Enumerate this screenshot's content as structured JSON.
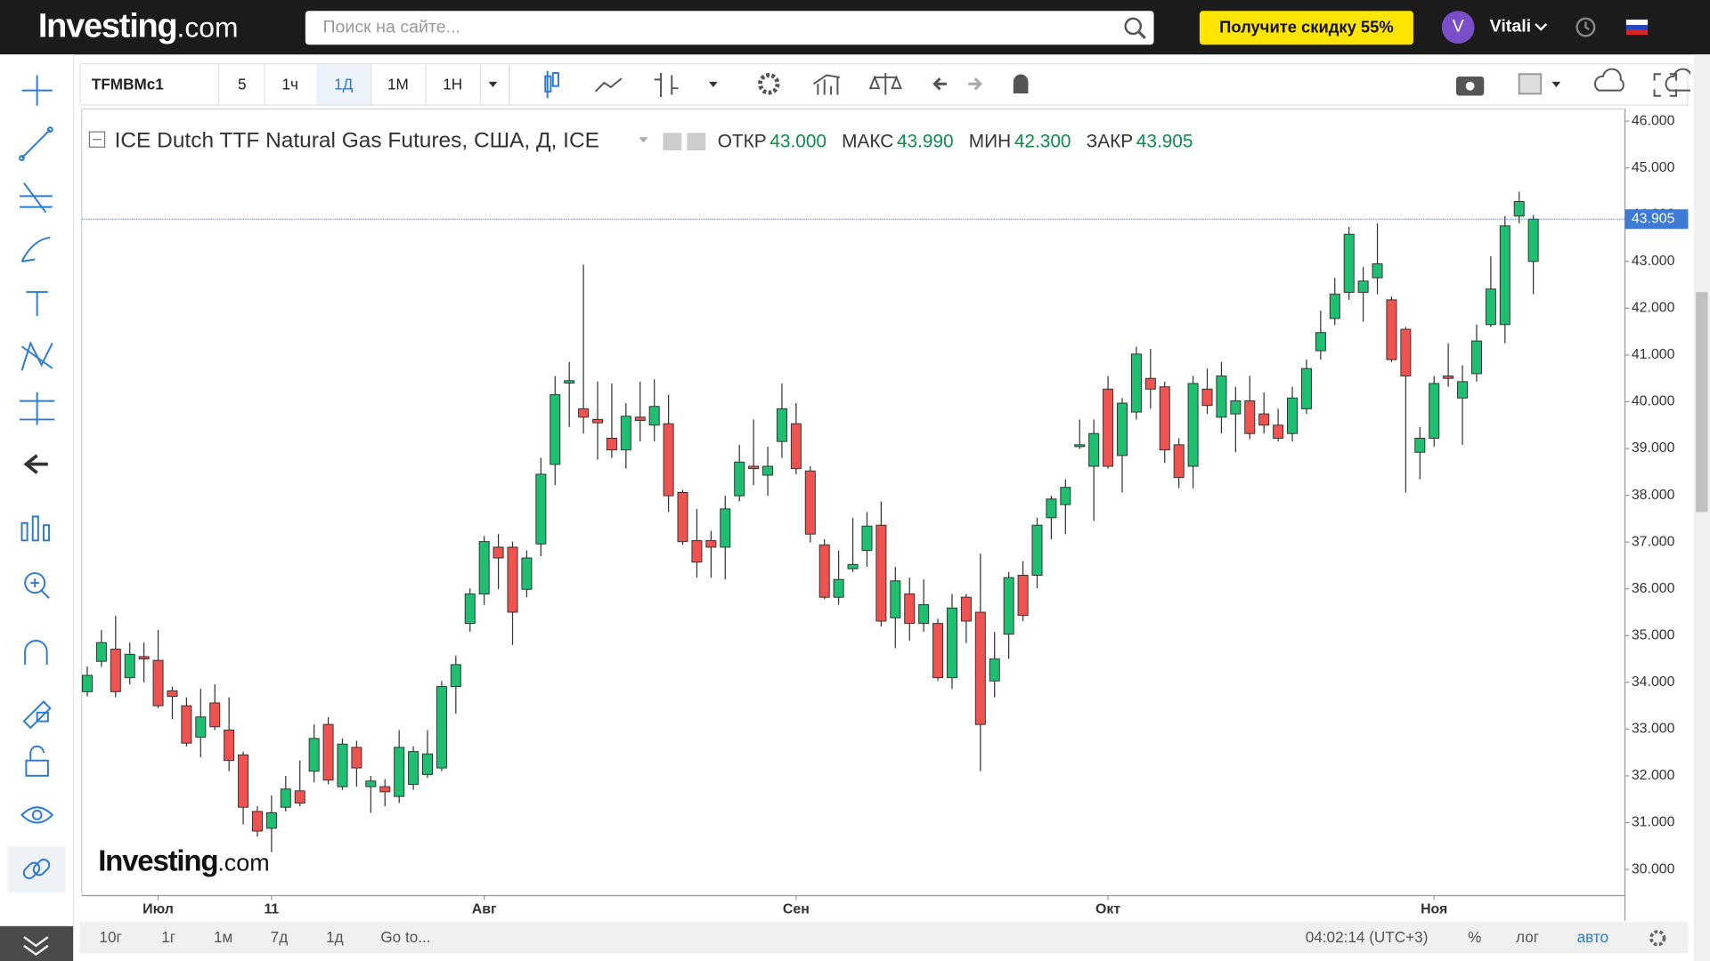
{
  "header": {
    "logo": "Investing",
    "logo_suffix": ".com",
    "search_placeholder": "Поиск на сайте...",
    "promo": "Получите скидку 55%",
    "avatar": "V",
    "user": "Vitali"
  },
  "toolbar": {
    "symbol": "TFMBMc1",
    "intervals": [
      "5",
      "1ч",
      "1Д",
      "1М",
      "1Н"
    ]
  },
  "bottom_bar": {
    "ranges": [
      "10г",
      "1г",
      "1м",
      "7д",
      "1д"
    ],
    "goto": "Go to...",
    "time": "04:02:14 (UTC+3)",
    "options": [
      "%",
      "лог",
      "авто"
    ]
  },
  "chart_data": {
    "type": "candlestick",
    "title": "ICE Dutch TTF Natural Gas Futures, США, Д, ICE",
    "ohlc_legend": [
      {
        "label": "ОТКР",
        "value": "43.000"
      },
      {
        "label": "МАКС",
        "value": "43.990"
      },
      {
        "label": "МИН",
        "value": "42.300"
      },
      {
        "label": "ЗАКР",
        "value": "43.905"
      }
    ],
    "categories": [
      null,
      null,
      null,
      null,
      null,
      "Июл",
      null,
      null,
      null,
      null,
      null,
      null,
      null,
      "11",
      null,
      null,
      null,
      null,
      null,
      null,
      null,
      null,
      null,
      null,
      null,
      null,
      null,
      null,
      "Авг",
      null,
      null,
      null,
      null,
      null,
      null,
      null,
      null,
      null,
      null,
      null,
      null,
      null,
      null,
      null,
      null,
      null,
      null,
      null,
      null,
      null,
      "Сен",
      null,
      null,
      null,
      null,
      null,
      null,
      null,
      null,
      null,
      null,
      null,
      null,
      null,
      null,
      null,
      null,
      null,
      null,
      null,
      null,
      null,
      "Окт",
      null,
      null,
      null,
      null,
      null,
      null,
      null,
      null,
      null,
      null,
      null,
      null,
      null,
      null,
      null,
      null,
      null,
      null,
      null,
      null,
      null,
      null,
      "Ноя",
      null,
      null,
      null,
      null,
      null,
      null,
      null
    ],
    "open": [
      33.8,
      34.45,
      34.71,
      34.1,
      34.55,
      34.47,
      33.82,
      33.5,
      32.83,
      33.56,
      32.98,
      32.45,
      31.24,
      30.88,
      31.33,
      31.68,
      32.1,
      33.1,
      31.77,
      32.61,
      31.77,
      31.77,
      31.56,
      31.82,
      32.03,
      32.17,
      33.91,
      35.26,
      35.89,
      36.89,
      36.89,
      35.99,
      36.96,
      38.66,
      40.4,
      39.85,
      39.62,
      39.22,
      38.97,
      39.67,
      39.5,
      39.53,
      38.06,
      37.03,
      37.03,
      36.89,
      37.99,
      38.62,
      38.43,
      39.15,
      39.53,
      38.52,
      36.94,
      35.82,
      36.43,
      36.82,
      37.36,
      35.38,
      35.89,
      35.26,
      35.26,
      34.1,
      35.82,
      35.5,
      34.03,
      35.03,
      36.29,
      36.29,
      37.52,
      37.8,
      39.04,
      38.62,
      40.27,
      38.85,
      39.78,
      40.5,
      40.32,
      39.08,
      38.62,
      40.27,
      39.67,
      39.74,
      40.02,
      39.74,
      39.5,
      39.32,
      39.85,
      41.09,
      41.78,
      42.34,
      42.34,
      42.65,
      42.18,
      41.55,
      38.92,
      39.22,
      40.55,
      40.08,
      40.6,
      41.65,
      41.65,
      43.97,
      43.0
    ],
    "high": [
      34.34,
      35.12,
      35.42,
      34.85,
      34.85,
      35.12,
      33.91,
      33.68,
      33.86,
      33.96,
      33.68,
      32.52,
      31.35,
      31.58,
      32.0,
      32.33,
      33.1,
      33.26,
      32.8,
      32.75,
      32.0,
      31.93,
      32.98,
      32.63,
      32.98,
      34.03,
      34.57,
      36.01,
      37.13,
      37.17,
      37.01,
      36.82,
      38.8,
      40.55,
      40.85,
      42.93,
      40.43,
      40.39,
      39.97,
      40.43,
      40.48,
      40.15,
      38.11,
      37.71,
      37.24,
      37.99,
      39.08,
      39.62,
      39.04,
      40.39,
      39.97,
      38.62,
      37.06,
      36.82,
      37.52,
      37.64,
      37.87,
      36.47,
      36.24,
      36.2,
      35.36,
      35.89,
      35.89,
      36.75,
      35.08,
      36.36,
      36.59,
      37.52,
      37.99,
      38.34,
      39.62,
      39.62,
      40.55,
      40.08,
      41.18,
      41.13,
      40.43,
      39.22,
      40.55,
      40.71,
      40.85,
      40.32,
      40.55,
      40.2,
      39.85,
      40.32,
      40.9,
      41.95,
      42.65,
      43.74,
      42.88,
      43.81,
      42.25,
      41.6,
      39.46,
      40.55,
      41.25,
      40.78,
      41.65,
      43.11,
      43.97,
      44.49,
      43.99
    ],
    "low": [
      33.7,
      34.33,
      33.68,
      33.96,
      34.0,
      33.45,
      33.21,
      32.63,
      32.4,
      32.98,
      32.1,
      30.96,
      30.7,
      30.37,
      31.24,
      31.35,
      31.86,
      31.82,
      31.7,
      31.77,
      31.21,
      31.35,
      31.42,
      31.7,
      31.96,
      32.1,
      33.33,
      35.08,
      35.66,
      35.99,
      34.8,
      35.82,
      36.7,
      38.22,
      39.46,
      39.32,
      38.76,
      38.8,
      38.57,
      39.15,
      39.15,
      37.64,
      36.94,
      36.24,
      36.24,
      36.2,
      37.87,
      38.22,
      37.99,
      38.8,
      38.45,
      36.99,
      35.78,
      35.66,
      36.36,
      36.47,
      35.19,
      34.73,
      34.89,
      35.08,
      34.03,
      33.86,
      34.84,
      32.1,
      33.68,
      34.5,
      35.31,
      36.01,
      37.06,
      37.17,
      38.99,
      37.45,
      38.57,
      38.06,
      39.62,
      39.85,
      38.69,
      38.15,
      38.15,
      39.74,
      39.32,
      38.92,
      39.2,
      39.32,
      39.15,
      39.15,
      39.74,
      40.9,
      41.64,
      42.18,
      41.71,
      42.3,
      40.85,
      38.06,
      38.34,
      39.04,
      40.32,
      39.08,
      40.43,
      41.6,
      41.25,
      43.81,
      42.3
    ],
    "close": [
      34.15,
      34.85,
      33.8,
      34.6,
      34.5,
      33.5,
      33.7,
      32.7,
      33.26,
      33.05,
      32.33,
      31.33,
      30.82,
      31.21,
      31.72,
      31.42,
      32.8,
      31.91,
      32.68,
      32.17,
      31.89,
      31.66,
      32.61,
      32.52,
      32.47,
      33.91,
      34.38,
      35.89,
      37.01,
      36.66,
      35.5,
      36.66,
      38.45,
      40.15,
      40.45,
      39.67,
      39.55,
      38.97,
      39.69,
      39.6,
      39.9,
      37.99,
      37.01,
      36.57,
      36.89,
      37.71,
      38.71,
      38.57,
      38.62,
      39.85,
      38.57,
      37.17,
      35.82,
      36.2,
      36.52,
      37.34,
      35.31,
      36.17,
      35.26,
      35.66,
      34.1,
      35.59,
      35.31,
      33.1,
      34.5,
      36.24,
      35.43,
      37.36,
      37.92,
      38.17,
      39.08,
      39.32,
      38.62,
      39.97,
      41.02,
      40.27,
      38.97,
      38.38,
      40.39,
      39.92,
      40.55,
      40.02,
      39.32,
      39.5,
      39.22,
      40.08,
      40.71,
      41.48,
      42.3,
      43.58,
      42.58,
      42.95,
      40.9,
      40.55,
      39.22,
      40.39,
      40.5,
      40.43,
      41.3,
      42.41,
      43.76,
      44.28,
      43.905
    ],
    "up_color": "#1fbf72",
    "down_color": "#ef5350",
    "last_price": 43.905,
    "last_price_color": "#3d7ad6",
    "ylim": [
      29.44,
      46.26
    ],
    "yticks": [
      {
        "value": 30,
        "label": "30.000"
      },
      {
        "value": 31,
        "label": "31.000"
      },
      {
        "value": 32,
        "label": "32.000"
      },
      {
        "value": 33,
        "label": "33.000"
      },
      {
        "value": 34,
        "label": "34.000"
      },
      {
        "value": 35,
        "label": "35.000"
      },
      {
        "value": 36,
        "label": "36.000"
      },
      {
        "value": 37,
        "label": "37.000"
      },
      {
        "value": 38,
        "label": "38.000"
      },
      {
        "value": 39,
        "label": "39.000"
      },
      {
        "value": 40,
        "label": "40.000"
      },
      {
        "value": 41,
        "label": "41.000"
      },
      {
        "value": 42,
        "label": "42.000"
      },
      {
        "value": 43,
        "label": "43.000"
      },
      {
        "value": 44,
        "label": "44.000"
      },
      {
        "value": 45,
        "label": "45.000"
      },
      {
        "value": 46,
        "label": "46.000"
      }
    ],
    "grid": false
  }
}
